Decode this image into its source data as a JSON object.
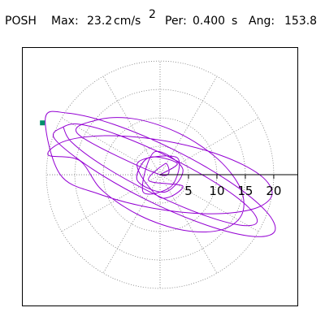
{
  "chart_data": {
    "type": "orbit",
    "header": {
      "station": "POSH",
      "max_label": "Max:",
      "max": 23.2,
      "max_unit": "cm/s",
      "max_unit_exp": "2",
      "per_label": "Per:",
      "per": "0.400",
      "per_unit": "s",
      "ang_label": "Ang:",
      "ang": 153.8
    },
    "xlim": [
      -24.3,
      24.3
    ],
    "ylim": [
      -23.1,
      22.4
    ],
    "rticks": [
      5,
      10,
      15,
      20
    ],
    "grid": true,
    "trace": {
      "color": "#9400d3",
      "x": [
        0,
        3,
        -2,
        -4,
        1,
        4,
        -1,
        -3,
        2,
        3,
        -4,
        0,
        4,
        -2,
        1,
        0,
        -14.35,
        -10.66,
        -4.12,
        3.53,
        10.24,
        14.2,
        14.35,
        10.66,
        4.12,
        -3.53,
        -10.24,
        -14.2,
        -19.7,
        -16.54,
        -8.95,
        1.04,
        10.75,
        17.58,
        19.7,
        16.54,
        8.95,
        -1.04,
        -10.75,
        -17.58,
        -20.18,
        -16.38,
        -8.18,
        2.21,
        12.0,
        18.58,
        20.18,
        16.38,
        8.18,
        -2.21,
        -12.0,
        -18.58,
        -17.04,
        -13.99,
        -7.19,
        1.54,
        9.85,
        15.53,
        17.04,
        13.99,
        7.19,
        -1.54,
        -9.85,
        -15.53,
        -17.04
      ],
      "y": [
        0,
        2,
        3,
        -1,
        -3,
        1,
        4,
        -3,
        -2,
        3,
        2,
        -4,
        -2,
        -1,
        2,
        0,
        7.06,
        9.7,
        9.75,
        7.18,
        2.69,
        -2.52,
        -7.06,
        -9.7,
        -9.75,
        -7.18,
        -2.69,
        2.52,
        3.48,
        5.97,
        6.86,
        5.91,
        3.38,
        -0.05,
        -3.48,
        -5.97,
        -6.86,
        -5.91,
        -3.38,
        0.05,
        9.92,
        10.83,
        8.85,
        4.49,
        -1.07,
        -6.35,
        -9.92,
        -10.83,
        -8.85,
        -4.49,
        1.07,
        6.35,
        8.38,
        8.83,
        6.91,
        3.14,
        -1.47,
        -5.69,
        -8.38,
        -8.83,
        -6.91,
        -3.14,
        1.47,
        5.69,
        8.38
      ]
    },
    "marker": {
      "x": -20.7,
      "y": 9.1,
      "color": "#008f6b"
    }
  }
}
